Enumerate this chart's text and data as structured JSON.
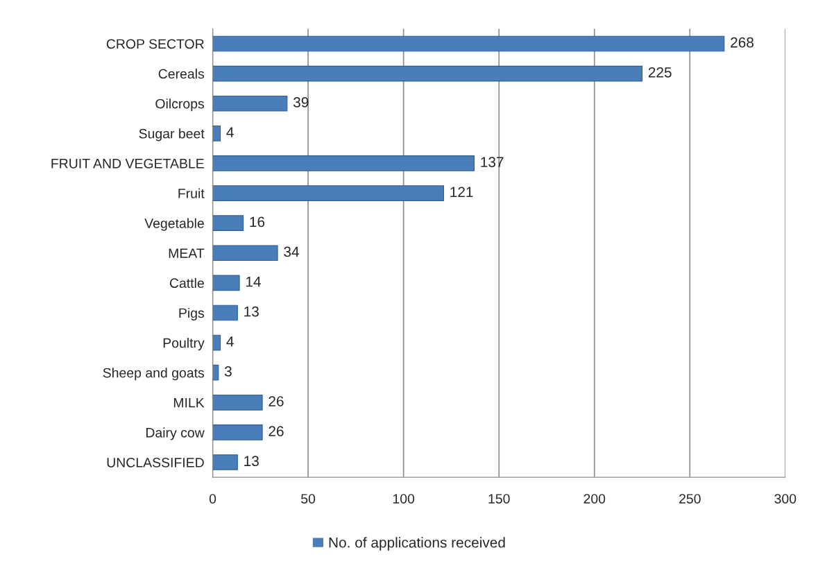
{
  "chart_data": {
    "type": "bar",
    "orientation": "horizontal",
    "categories": [
      "CROP SECTOR",
      "Cereals",
      "Oilcrops",
      "Sugar beet",
      "FRUIT AND VEGETABLE",
      "Fruit",
      "Vegetable",
      "MEAT",
      "Cattle",
      "Pigs",
      "Poultry",
      "Sheep and goats",
      "MILK",
      "Dairy cow",
      "UNCLASSIFIED"
    ],
    "series": [
      {
        "name": "No. of applications received",
        "color": "#4a7ebb",
        "values": [
          268,
          225,
          39,
          4,
          137,
          121,
          16,
          34,
          14,
          13,
          4,
          3,
          26,
          26,
          13
        ]
      }
    ],
    "xlim": [
      0,
      300
    ],
    "xticks": [
      0,
      50,
      100,
      150,
      200,
      250,
      300
    ],
    "grid": "x",
    "legend": "bottom",
    "data_labels": true
  }
}
